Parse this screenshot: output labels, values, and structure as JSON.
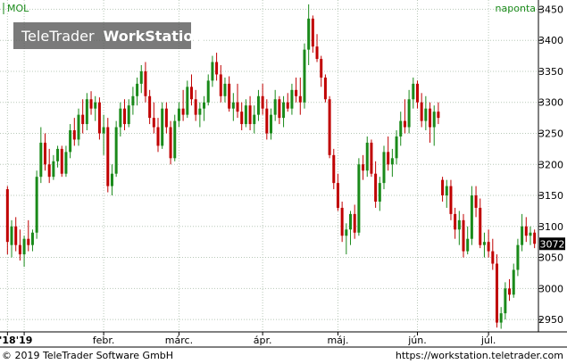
{
  "header": {
    "symbol": "MOL",
    "period": "naponta",
    "watermark_brand": "TeleTrader",
    "watermark_product": "WorkStation"
  },
  "colors": {
    "up": "#1a8a1a",
    "down": "#c00000",
    "grid": "#b8c8b8",
    "axis": "#000000",
    "price_tag_bg": "#000000",
    "price_tag_fg": "#ffffff",
    "symbol_color": "#1a8a1a",
    "watermark_bg": "#555555"
  },
  "footer": {
    "copyright": "© 2019 TeleTrader Software GmbH",
    "url": "https://workstation.teletrader.com"
  },
  "chart_data": {
    "type": "candlestick",
    "title": "MOL",
    "ylim": [
      2930,
      3465
    ],
    "yticks": [
      2950,
      3000,
      3050,
      3100,
      3150,
      3200,
      3250,
      3300,
      3350,
      3400,
      3450
    ],
    "grid": true,
    "last_price": "3072",
    "xticks": [
      {
        "label": "'18",
        "index": 0
      },
      {
        "label": "'19",
        "index": 4
      },
      {
        "label": "febr.",
        "index": 23
      },
      {
        "label": "márc.",
        "index": 41
      },
      {
        "label": "ápr.",
        "index": 61
      },
      {
        "label": "máj.",
        "index": 79
      },
      {
        "label": "jún.",
        "index": 98
      },
      {
        "label": "júl.",
        "index": 115
      }
    ],
    "candles": [
      [
        3160,
        3165,
        3055,
        3075
      ],
      [
        3070,
        3110,
        3050,
        3100
      ],
      [
        3100,
        3115,
        3060,
        3070
      ],
      [
        3070,
        3095,
        3045,
        3055
      ],
      [
        3055,
        3085,
        3035,
        3080
      ],
      [
        3080,
        3110,
        3060,
        3070
      ],
      [
        3070,
        3095,
        3060,
        3090
      ],
      [
        3090,
        3190,
        3080,
        3180
      ],
      [
        3180,
        3260,
        3170,
        3235
      ],
      [
        3235,
        3250,
        3190,
        3200
      ],
      [
        3200,
        3225,
        3170,
        3180
      ],
      [
        3180,
        3215,
        3175,
        3205
      ],
      [
        3205,
        3230,
        3195,
        3225
      ],
      [
        3225,
        3230,
        3180,
        3185
      ],
      [
        3185,
        3230,
        3180,
        3220
      ],
      [
        3220,
        3265,
        3210,
        3255
      ],
      [
        3255,
        3275,
        3230,
        3240
      ],
      [
        3240,
        3290,
        3230,
        3280
      ],
      [
        3280,
        3305,
        3250,
        3265
      ],
      [
        3265,
        3315,
        3255,
        3305
      ],
      [
        3305,
        3318,
        3280,
        3290
      ],
      [
        3290,
        3310,
        3270,
        3300
      ],
      [
        3300,
        3308,
        3240,
        3250
      ],
      [
        3250,
        3280,
        3215,
        3260
      ],
      [
        3260,
        3275,
        3155,
        3165
      ],
      [
        3165,
        3200,
        3150,
        3185
      ],
      [
        3185,
        3270,
        3180,
        3260
      ],
      [
        3260,
        3300,
        3245,
        3290
      ],
      [
        3290,
        3305,
        3255,
        3265
      ],
      [
        3265,
        3305,
        3260,
        3295
      ],
      [
        3295,
        3325,
        3280,
        3310
      ],
      [
        3310,
        3340,
        3295,
        3330
      ],
      [
        3330,
        3360,
        3315,
        3350
      ],
      [
        3350,
        3365,
        3300,
        3310
      ],
      [
        3310,
        3320,
        3265,
        3275
      ],
      [
        3275,
        3300,
        3250,
        3260
      ],
      [
        3260,
        3275,
        3220,
        3230
      ],
      [
        3230,
        3300,
        3225,
        3290
      ],
      [
        3290,
        3300,
        3250,
        3260
      ],
      [
        3260,
        3270,
        3200,
        3210
      ],
      [
        3210,
        3280,
        3205,
        3270
      ],
      [
        3270,
        3300,
        3260,
        3290
      ],
      [
        3290,
        3320,
        3270,
        3280
      ],
      [
        3280,
        3335,
        3275,
        3325
      ],
      [
        3325,
        3345,
        3295,
        3305
      ],
      [
        3305,
        3320,
        3270,
        3280
      ],
      [
        3280,
        3300,
        3260,
        3290
      ],
      [
        3290,
        3310,
        3270,
        3300
      ],
      [
        3300,
        3345,
        3295,
        3335
      ],
      [
        3335,
        3375,
        3325,
        3365
      ],
      [
        3365,
        3380,
        3335,
        3345
      ],
      [
        3345,
        3360,
        3300,
        3310
      ],
      [
        3310,
        3340,
        3300,
        3330
      ],
      [
        3330,
        3342,
        3285,
        3290
      ],
      [
        3290,
        3315,
        3270,
        3300
      ],
      [
        3300,
        3330,
        3275,
        3285
      ],
      [
        3285,
        3300,
        3255,
        3265
      ],
      [
        3265,
        3305,
        3260,
        3295
      ],
      [
        3295,
        3310,
        3255,
        3265
      ],
      [
        3265,
        3295,
        3250,
        3280
      ],
      [
        3280,
        3320,
        3270,
        3310
      ],
      [
        3310,
        3330,
        3280,
        3290
      ],
      [
        3290,
        3305,
        3240,
        3250
      ],
      [
        3250,
        3290,
        3240,
        3280
      ],
      [
        3280,
        3320,
        3270,
        3305
      ],
      [
        3305,
        3310,
        3265,
        3275
      ],
      [
        3275,
        3310,
        3260,
        3300
      ],
      [
        3300,
        3315,
        3285,
        3290
      ],
      [
        3290,
        3330,
        3280,
        3320
      ],
      [
        3320,
        3340,
        3300,
        3310
      ],
      [
        3310,
        3340,
        3280,
        3300
      ],
      [
        3300,
        3395,
        3290,
        3385
      ],
      [
        3385,
        3458,
        3360,
        3435
      ],
      [
        3435,
        3440,
        3380,
        3390
      ],
      [
        3390,
        3410,
        3365,
        3370
      ],
      [
        3370,
        3375,
        3325,
        3340
      ],
      [
        3340,
        3345,
        3300,
        3305
      ],
      [
        3305,
        3310,
        3210,
        3215
      ],
      [
        3215,
        3225,
        3160,
        3170
      ],
      [
        3170,
        3185,
        3125,
        3130
      ],
      [
        3130,
        3140,
        3075,
        3085
      ],
      [
        3085,
        3105,
        3055,
        3095
      ],
      [
        3095,
        3125,
        3070,
        3120
      ],
      [
        3120,
        3135,
        3080,
        3090
      ],
      [
        3090,
        3210,
        3085,
        3200
      ],
      [
        3200,
        3215,
        3175,
        3190
      ],
      [
        3190,
        3245,
        3180,
        3235
      ],
      [
        3235,
        3240,
        3180,
        3185
      ],
      [
        3185,
        3205,
        3130,
        3140
      ],
      [
        3140,
        3180,
        3125,
        3170
      ],
      [
        3170,
        3230,
        3160,
        3220
      ],
      [
        3220,
        3245,
        3190,
        3200
      ],
      [
        3200,
        3225,
        3180,
        3210
      ],
      [
        3210,
        3255,
        3200,
        3245
      ],
      [
        3245,
        3285,
        3230,
        3270
      ],
      [
        3270,
        3305,
        3250,
        3260
      ],
      [
        3260,
        3320,
        3250,
        3305
      ],
      [
        3305,
        3340,
        3290,
        3330
      ],
      [
        3330,
        3335,
        3290,
        3300
      ],
      [
        3300,
        3315,
        3260,
        3270
      ],
      [
        3270,
        3310,
        3255,
        3290
      ],
      [
        3290,
        3300,
        3235,
        3260
      ],
      [
        3260,
        3295,
        3230,
        3285
      ],
      [
        3285,
        3300,
        3265,
        3275
      ],
      [
        3175,
        3180,
        3140,
        3150
      ],
      [
        3150,
        3175,
        3130,
        3165
      ],
      [
        3165,
        3175,
        3110,
        3120
      ],
      [
        3120,
        3130,
        3080,
        3095
      ],
      [
        3095,
        3125,
        3070,
        3110
      ],
      [
        3110,
        3120,
        3050,
        3060
      ],
      [
        3060,
        3100,
        3055,
        3080
      ],
      [
        3080,
        3165,
        3070,
        3150
      ],
      [
        3150,
        3165,
        3115,
        3130
      ],
      [
        3130,
        3145,
        3065,
        3070
      ],
      [
        3070,
        3090,
        3050,
        3075
      ],
      [
        3075,
        3095,
        3050,
        3060
      ],
      [
        3060,
        3080,
        3030,
        3040
      ],
      [
        3040,
        3055,
        2937,
        2945
      ],
      [
        2945,
        2970,
        2935,
        2960
      ],
      [
        2960,
        3010,
        2950,
        3000
      ],
      [
        3000,
        3015,
        2980,
        2990
      ],
      [
        2990,
        3040,
        2985,
        3030
      ],
      [
        3030,
        3080,
        3020,
        3070
      ],
      [
        3070,
        3120,
        3060,
        3100
      ],
      [
        3100,
        3115,
        3075,
        3085
      ],
      [
        3085,
        3100,
        3070,
        3090
      ],
      [
        3090,
        3095,
        3065,
        3072
      ]
    ]
  }
}
